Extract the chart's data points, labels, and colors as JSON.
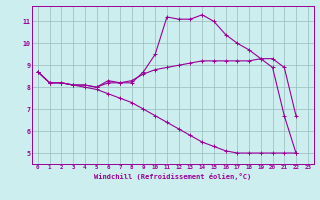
{
  "xlabel": "Windchill (Refroidissement éolien,°C)",
  "bg_color": "#cceeee",
  "line_color": "#990099",
  "grid_color": "#99bbbb",
  "xlim": [
    -0.5,
    23.5
  ],
  "ylim": [
    4.5,
    11.7
  ],
  "xticks": [
    0,
    1,
    2,
    3,
    4,
    5,
    6,
    7,
    8,
    9,
    10,
    11,
    12,
    13,
    14,
    15,
    16,
    17,
    18,
    19,
    20,
    21,
    22,
    23
  ],
  "yticks": [
    5,
    6,
    7,
    8,
    9,
    10,
    11
  ],
  "series": [
    {
      "x": [
        0,
        1,
        2,
        3,
        4,
        5,
        6,
        7,
        8,
        9,
        10,
        11,
        12,
        13,
        14,
        15,
        16,
        17,
        18,
        19,
        20,
        21,
        22
      ],
      "y": [
        8.7,
        8.2,
        8.2,
        8.1,
        8.1,
        8.0,
        8.3,
        8.2,
        8.2,
        8.7,
        9.5,
        11.2,
        11.1,
        11.1,
        11.3,
        11.0,
        10.4,
        10.0,
        9.7,
        9.3,
        8.9,
        6.7,
        5.0
      ]
    },
    {
      "x": [
        0,
        1,
        2,
        3,
        4,
        5,
        6,
        7,
        8,
        9,
        10,
        11,
        12,
        13,
        14,
        15,
        16,
        17,
        18,
        19,
        20,
        21,
        22
      ],
      "y": [
        8.7,
        8.2,
        8.2,
        8.1,
        8.1,
        8.0,
        8.2,
        8.2,
        8.3,
        8.6,
        8.8,
        8.9,
        9.0,
        9.1,
        9.2,
        9.2,
        9.2,
        9.2,
        9.2,
        9.3,
        9.3,
        8.9,
        6.7
      ]
    },
    {
      "x": [
        0,
        1,
        2,
        3,
        4,
        5,
        6,
        7,
        8,
        9,
        10,
        11,
        12,
        13,
        14,
        15,
        16,
        17,
        18,
        19,
        20,
        21,
        22
      ],
      "y": [
        8.7,
        8.2,
        8.2,
        8.1,
        8.0,
        7.9,
        7.7,
        7.5,
        7.3,
        7.0,
        6.7,
        6.4,
        6.1,
        5.8,
        5.5,
        5.3,
        5.1,
        5.0,
        5.0,
        5.0,
        5.0,
        5.0,
        5.0
      ]
    }
  ]
}
